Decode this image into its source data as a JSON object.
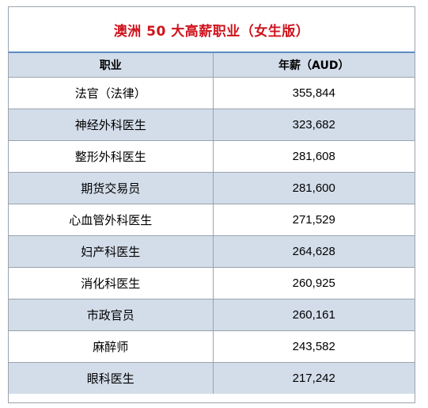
{
  "title": "澳洲 50 大高薪职业（女生版）",
  "columns": [
    "职业",
    "年薪（AUD）"
  ],
  "rows": [
    {
      "job": "法官（法律）",
      "salary": "355,844"
    },
    {
      "job": "神经外科医生",
      "salary": "323,682"
    },
    {
      "job": "整形外科医生",
      "salary": "281,608"
    },
    {
      "job": "期货交易员",
      "salary": "281,600"
    },
    {
      "job": "心血管外科医生",
      "salary": "271,529"
    },
    {
      "job": "妇产科医生",
      "salary": "264,628"
    },
    {
      "job": "消化科医生",
      "salary": "260,925"
    },
    {
      "job": "市政官员",
      "salary": "260,161"
    },
    {
      "job": "麻醉师",
      "salary": "243,582"
    },
    {
      "job": "眼科医生",
      "salary": "217,242"
    }
  ],
  "colors": {
    "title": "#d0121b",
    "stripe": "#d3ddea",
    "accent_line": "#5b8ec5"
  }
}
